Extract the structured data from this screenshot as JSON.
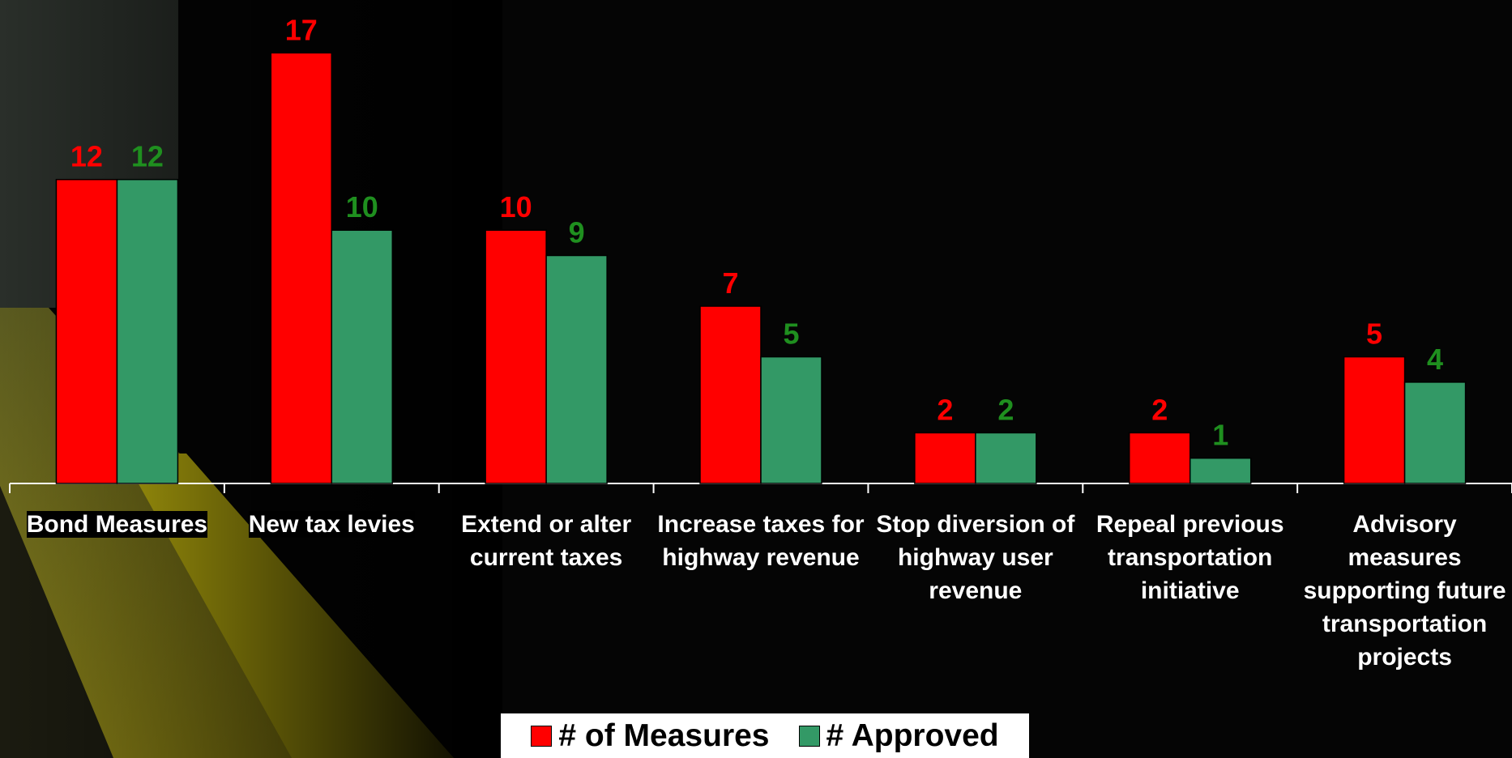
{
  "chart_data": {
    "type": "bar",
    "categories": [
      "Bond Measures",
      "New tax levies",
      "Extend or alter current taxes",
      "Increase taxes for highway revenue",
      "Stop diversion of highway user revenue",
      "Repeal previous transportation initiative",
      "Advisory measures supporting future transportation projects"
    ],
    "series": [
      {
        "name": "# of Measures",
        "color": "#ff0000",
        "values": [
          12,
          17,
          10,
          7,
          2,
          2,
          5
        ]
      },
      {
        "name": "# Approved",
        "color": "#339966",
        "values": [
          12,
          10,
          9,
          5,
          2,
          1,
          4
        ]
      }
    ],
    "ylim": [
      0,
      18
    ],
    "legend": "bottom"
  }
}
